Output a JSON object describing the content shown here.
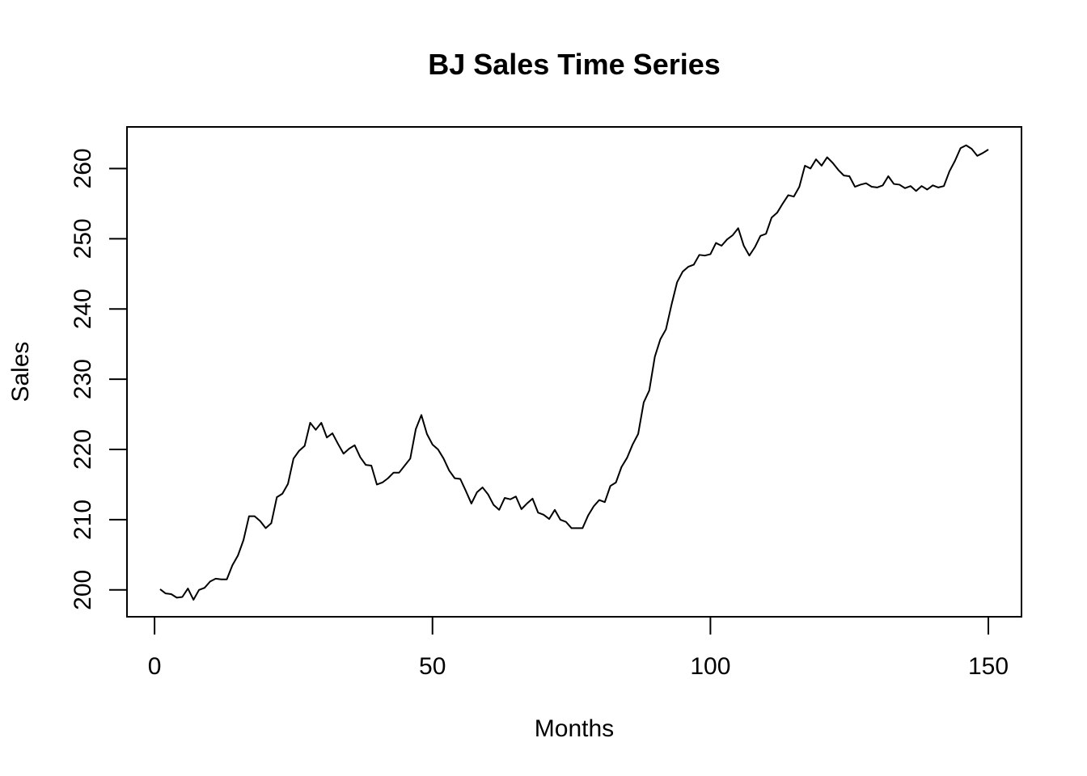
{
  "chart_data": {
    "type": "line",
    "title": "BJ Sales Time Series",
    "xlabel": "Months",
    "ylabel": "Sales",
    "xlim": [
      -4.96,
      155.96
    ],
    "ylim": [
      196.18,
      265.92
    ],
    "x_ticks": [
      0,
      50,
      100,
      150
    ],
    "y_ticks": [
      200,
      210,
      220,
      230,
      240,
      250,
      260
    ],
    "grid": false,
    "legend": "none",
    "line_color": "#000000",
    "x": [
      1,
      2,
      3,
      4,
      5,
      6,
      7,
      8,
      9,
      10,
      11,
      12,
      13,
      14,
      15,
      16,
      17,
      18,
      19,
      20,
      21,
      22,
      23,
      24,
      25,
      26,
      27,
      28,
      29,
      30,
      31,
      32,
      33,
      34,
      35,
      36,
      37,
      38,
      39,
      40,
      41,
      42,
      43,
      44,
      45,
      46,
      47,
      48,
      49,
      50,
      51,
      52,
      53,
      54,
      55,
      56,
      57,
      58,
      59,
      60,
      61,
      62,
      63,
      64,
      65,
      66,
      67,
      68,
      69,
      70,
      71,
      72,
      73,
      74,
      75,
      76,
      77,
      78,
      79,
      80,
      81,
      82,
      83,
      84,
      85,
      86,
      87,
      88,
      89,
      90,
      91,
      92,
      93,
      94,
      95,
      96,
      97,
      98,
      99,
      100,
      101,
      102,
      103,
      104,
      105,
      106,
      107,
      108,
      109,
      110,
      111,
      112,
      113,
      114,
      115,
      116,
      117,
      118,
      119,
      120,
      121,
      122,
      123,
      124,
      125,
      126,
      127,
      128,
      129,
      130,
      131,
      132,
      133,
      134,
      135,
      136,
      137,
      138,
      139,
      140,
      141,
      142,
      143,
      144,
      145,
      146,
      147,
      148,
      149,
      150
    ],
    "y": [
      200.1,
      199.5,
      199.4,
      198.9,
      199.0,
      200.2,
      198.6,
      200.0,
      200.3,
      201.2,
      201.6,
      201.5,
      201.5,
      203.5,
      204.9,
      207.1,
      210.5,
      210.5,
      209.8,
      208.8,
      209.5,
      213.2,
      213.7,
      215.1,
      218.7,
      219.8,
      220.5,
      223.8,
      222.8,
      223.8,
      221.7,
      222.3,
      220.8,
      219.4,
      220.1,
      220.6,
      218.9,
      217.8,
      217.7,
      215.0,
      215.3,
      215.9,
      216.7,
      216.7,
      217.7,
      218.7,
      222.9,
      224.9,
      222.2,
      220.7,
      220.0,
      218.7,
      217.0,
      215.9,
      215.8,
      214.1,
      212.3,
      213.9,
      214.6,
      213.6,
      212.1,
      211.4,
      213.1,
      212.9,
      213.3,
      211.5,
      212.3,
      213.0,
      211.0,
      210.7,
      210.1,
      211.4,
      210.0,
      209.7,
      208.8,
      208.8,
      208.8,
      210.6,
      211.9,
      212.8,
      212.5,
      214.8,
      215.3,
      217.5,
      218.8,
      220.7,
      222.2,
      226.7,
      228.4,
      233.2,
      235.7,
      237.1,
      240.6,
      243.8,
      245.3,
      246.0,
      246.3,
      247.7,
      247.6,
      247.8,
      249.4,
      249.0,
      249.9,
      250.5,
      251.5,
      249.0,
      247.6,
      248.8,
      250.4,
      250.7,
      253.0,
      253.7,
      255.0,
      256.2,
      256.0,
      257.4,
      260.4,
      260.0,
      261.3,
      260.4,
      261.6,
      260.8,
      259.8,
      259.0,
      258.9,
      257.4,
      257.7,
      257.9,
      257.4,
      257.3,
      257.6,
      258.9,
      257.8,
      257.7,
      257.2,
      257.5,
      256.8,
      257.5,
      257.0,
      257.6,
      257.3,
      257.5,
      259.6,
      261.1,
      262.9,
      263.3,
      262.8,
      261.8,
      262.2,
      262.7
    ]
  }
}
